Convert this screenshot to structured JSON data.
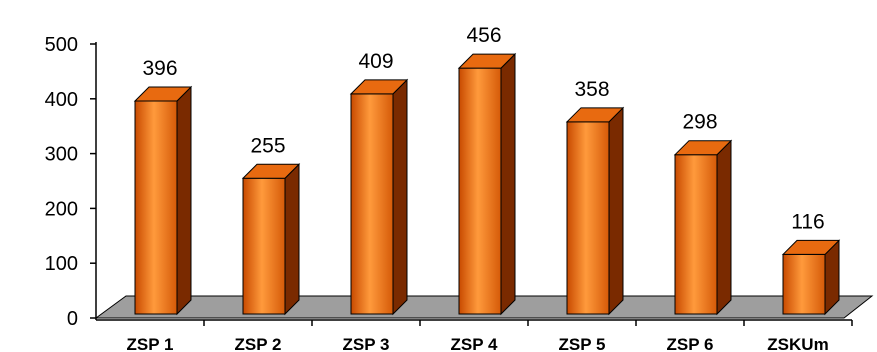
{
  "chart_data": {
    "type": "bar",
    "categories": [
      "ZSP 1",
      "ZSP 2",
      "ZSP 3",
      "ZSP 4",
      "ZSP 5",
      "ZSP 6",
      "ZSKUm"
    ],
    "values": [
      396,
      255,
      409,
      456,
      358,
      298,
      116
    ],
    "data_labels": [
      "396",
      "255",
      "409",
      "456",
      "358",
      "298",
      "116"
    ],
    "yticks": [
      0,
      100,
      200,
      300,
      400,
      500
    ],
    "ytick_labels": [
      "0",
      "100",
      "200",
      "300",
      "400",
      "500"
    ],
    "ylim": [
      0,
      500
    ],
    "title": "",
    "xlabel": "",
    "ylabel": "",
    "grid": false,
    "legend": "none",
    "style": "3d",
    "colors": {
      "bar_front_light": "#ff9a3c",
      "bar_front_dark": "#c84a00",
      "bar_side": "#7a2a00",
      "bar_top": "#e86a10",
      "floor": "#9e9e9e"
    }
  }
}
